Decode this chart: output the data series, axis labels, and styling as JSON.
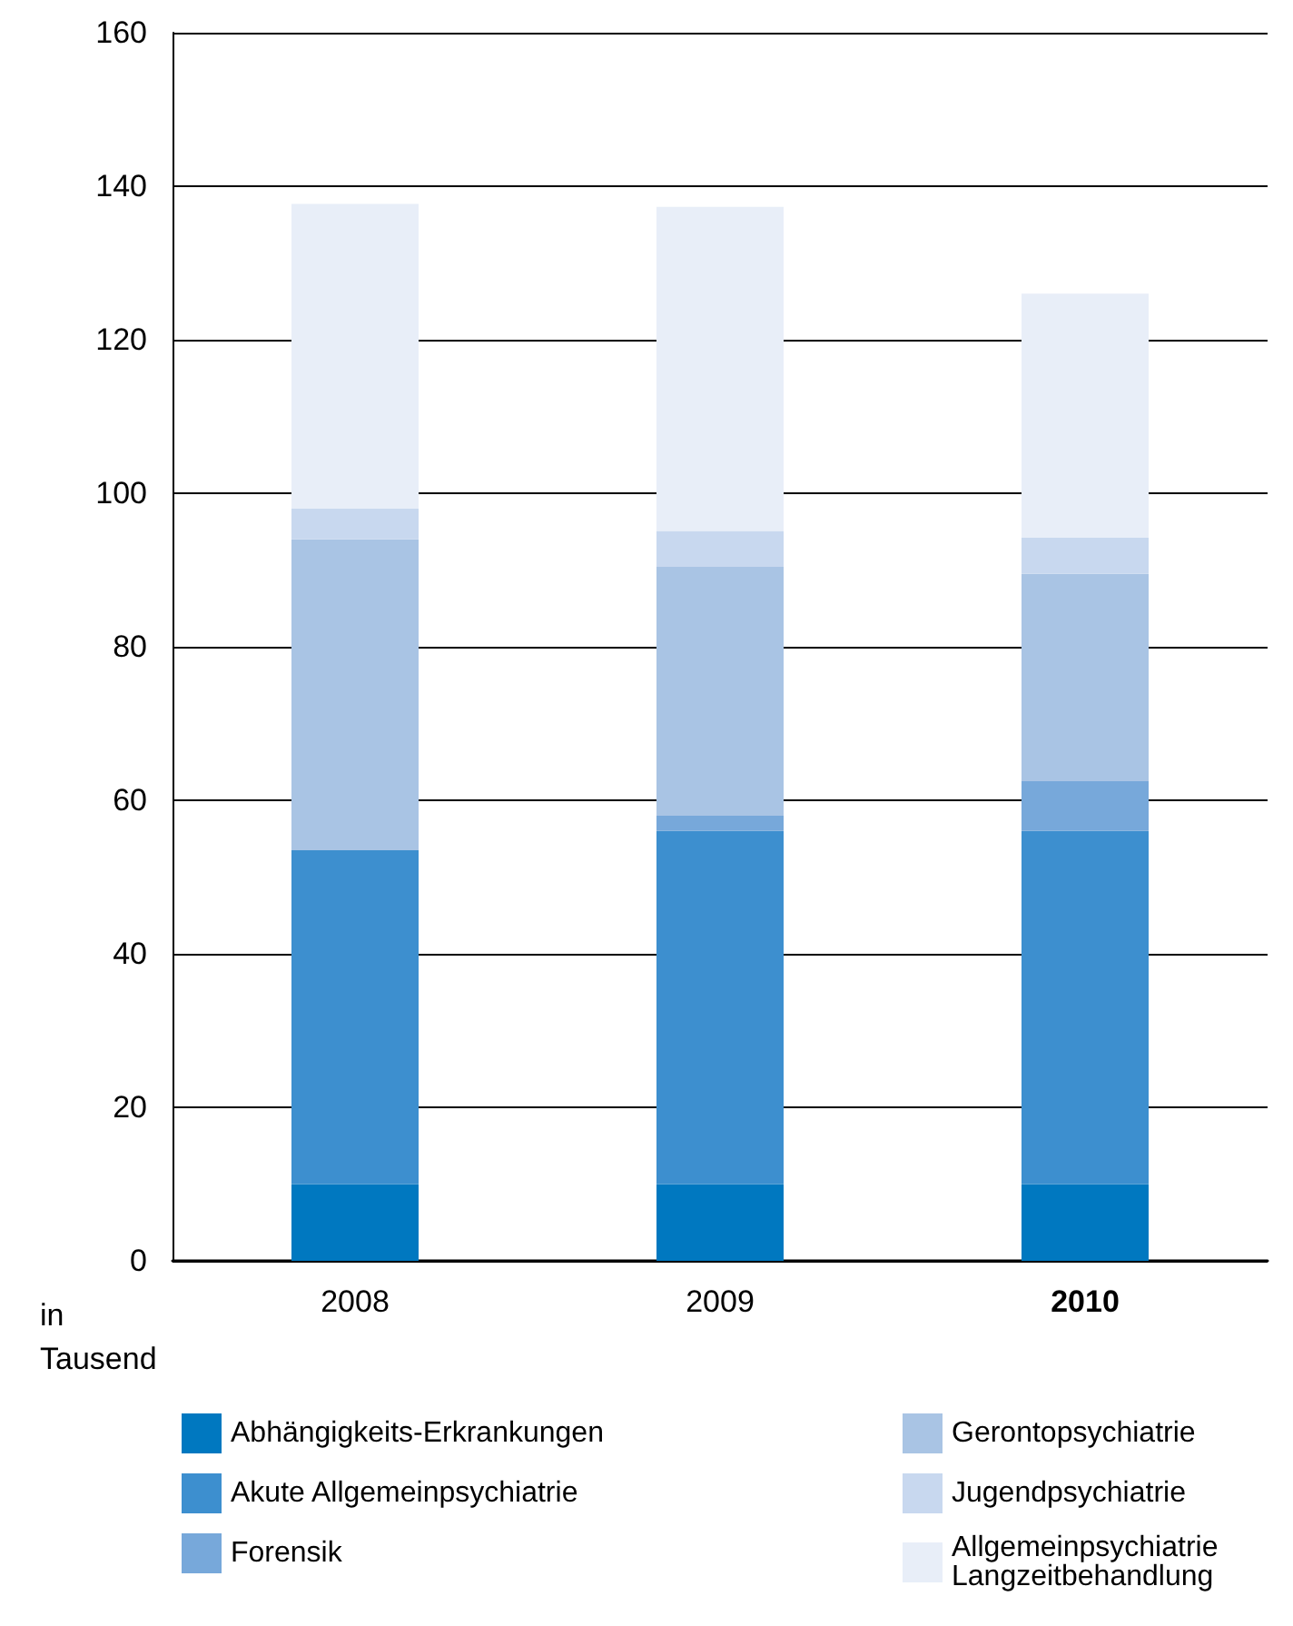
{
  "chart_data": {
    "type": "bar",
    "stacked": true,
    "ylabel": "in Tausend",
    "categories": [
      "2008",
      "2009",
      "2010"
    ],
    "series": [
      {
        "name": "Abhängigkeits-Erkrankungen",
        "color": "#0078c0",
        "values": [
          10,
          10,
          10
        ]
      },
      {
        "name": "Akute Allgemeinpsychiatrie",
        "color": "#3d8fcf",
        "values": [
          43.5,
          46,
          46
        ]
      },
      {
        "name": "Forensik",
        "color": "#77a8da",
        "values": [
          0,
          2,
          6.5
        ]
      },
      {
        "name": "Gerontopsychiatrie",
        "color": "#a9c4e4",
        "values": [
          40.5,
          32.4,
          27
        ]
      },
      {
        "name": "Jugendpsychiatrie",
        "color": "#c8d8ef",
        "values": [
          4,
          4.7,
          4.7
        ]
      },
      {
        "name": "Allgemeinpsychiatrie Langzeitbehandlung",
        "color": "#e8eef8",
        "values": [
          39.7,
          42.2,
          31.8
        ]
      }
    ],
    "ylim": [
      0,
      160
    ],
    "yticks": [
      0,
      20,
      40,
      60,
      80,
      100,
      120,
      140,
      160
    ],
    "grid": "y",
    "legend": "bottom"
  }
}
